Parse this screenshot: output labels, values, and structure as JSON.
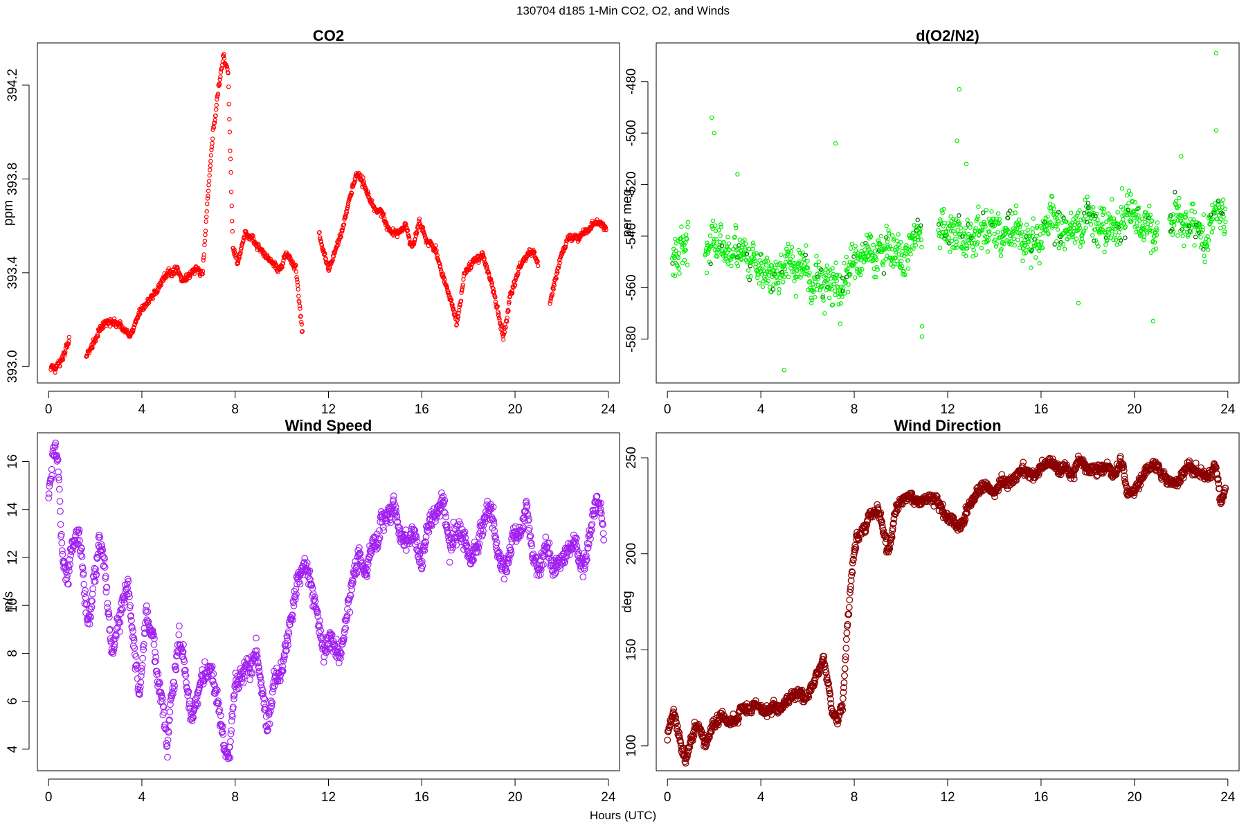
{
  "figure": {
    "title": "130704   d185   1-Min CO2, O2, and Winds",
    "xlabel": "Hours (UTC)"
  },
  "chart_data": [
    {
      "id": "co2",
      "type": "scatter",
      "title": "CO2",
      "xlabel": "",
      "ylabel": "ppm",
      "color": "#ff0000",
      "marker": "open-circle",
      "xlim": [
        -0.48,
        24.48
      ],
      "ylim": [
        392.93,
        394.38
      ],
      "xticks": [
        0,
        4,
        8,
        12,
        16,
        20,
        24
      ],
      "yticks": [
        393.0,
        393.4,
        393.8,
        394.2
      ],
      "ytick_labels": [
        "393.0",
        "393.4",
        "393.8",
        "394.2"
      ],
      "gaps": [
        [
          0.9,
          1.6
        ],
        [
          10.9,
          11.6
        ],
        [
          21.0,
          21.5
        ]
      ],
      "series": [
        {
          "name": "",
          "x": [
            0.1,
            0.5,
            0.9,
            1.6,
            2.0,
            2.5,
            3.0,
            3.5,
            4.0,
            4.5,
            5.0,
            5.5,
            5.8,
            6.3,
            6.6,
            6.8,
            7.0,
            7.3,
            7.5,
            7.7,
            7.9,
            8.1,
            8.4,
            8.7,
            9.0,
            9.3,
            9.6,
            9.9,
            10.2,
            10.6,
            10.9,
            11.6,
            12.0,
            12.5,
            12.8,
            13.2,
            13.5,
            13.9,
            14.3,
            14.8,
            15.3,
            15.6,
            15.9,
            16.2,
            16.6,
            17.0,
            17.5,
            17.8,
            18.2,
            18.6,
            19.0,
            19.5,
            19.8,
            20.1,
            20.4,
            20.8,
            21.5,
            21.9,
            22.3,
            22.8,
            23.2,
            23.5,
            23.9
          ],
          "y": [
            392.99,
            393.02,
            393.1,
            393.03,
            393.13,
            393.2,
            393.18,
            393.14,
            393.24,
            393.3,
            393.38,
            393.41,
            393.37,
            393.43,
            393.4,
            393.7,
            393.95,
            394.2,
            394.33,
            394.25,
            393.5,
            393.45,
            393.55,
            393.55,
            393.5,
            393.46,
            393.44,
            393.4,
            393.48,
            393.42,
            393.12,
            393.55,
            393.42,
            393.55,
            393.68,
            393.82,
            393.78,
            393.68,
            393.65,
            393.55,
            393.6,
            393.5,
            393.62,
            393.55,
            393.5,
            393.35,
            393.18,
            393.38,
            393.46,
            393.48,
            393.35,
            393.12,
            393.3,
            393.4,
            393.45,
            393.5,
            393.28,
            393.46,
            393.55,
            393.55,
            393.58,
            393.62,
            393.6
          ]
        }
      ]
    },
    {
      "id": "o2",
      "type": "scatter",
      "title": "d(O2/N2)",
      "xlabel": "",
      "ylabel": "per meg",
      "color": "#00ee00",
      "marker": "open-circle",
      "xlim": [
        -0.48,
        24.48
      ],
      "ylim": [
        -597,
        -465
      ],
      "xticks": [
        0,
        4,
        8,
        12,
        16,
        20,
        24
      ],
      "yticks": [
        -580,
        -560,
        -540,
        -520,
        -500,
        -480
      ],
      "ytick_labels": [
        "-580",
        "-560",
        "-540",
        "-520",
        "-500",
        "-480"
      ],
      "gaps": [
        [
          0.9,
          1.6
        ],
        [
          10.9,
          11.6
        ],
        [
          21.0,
          21.5
        ]
      ],
      "series": [
        {
          "name": "",
          "x": [
            0.2,
            0.6,
            1.7,
            2.5,
            3.5,
            4.5,
            5.5,
            6.5,
            7.5,
            8.5,
            9.5,
            10.5,
            11.7,
            12.5,
            13.5,
            14.5,
            15.5,
            16.5,
            17.5,
            18.5,
            19.5,
            20.5,
            21.7,
            22.5,
            23.5,
            23.9
          ],
          "y": [
            -545,
            -543,
            -545,
            -546,
            -548,
            -552,
            -553,
            -557,
            -556,
            -550,
            -546,
            -543,
            -539,
            -538,
            -539,
            -540,
            -539,
            -535,
            -537,
            -536,
            -537,
            -538,
            -534,
            -537,
            -533,
            -532
          ],
          "outliers": [
            [
              1.9,
              -494
            ],
            [
              2.0,
              -500
            ],
            [
              3.0,
              -516
            ],
            [
              7.2,
              -504
            ],
            [
              12.5,
              -483
            ],
            [
              12.4,
              -503
            ],
            [
              12.8,
              -512
            ],
            [
              10.9,
              -575
            ],
            [
              10.9,
              -579
            ],
            [
              5.0,
              -592
            ],
            [
              23.5,
              -469
            ],
            [
              23.5,
              -499
            ],
            [
              22.0,
              -509
            ],
            [
              20.8,
              -573
            ],
            [
              17.6,
              -566
            ],
            [
              7.4,
              -574
            ]
          ]
        }
      ]
    },
    {
      "id": "wind-speed",
      "type": "scatter",
      "title": "Wind Speed",
      "xlabel": "",
      "ylabel": "m/s",
      "color": "#a020f0",
      "marker": "open-circle",
      "xlim": [
        -0.48,
        24.48
      ],
      "ylim": [
        3.1,
        17.2
      ],
      "xticks": [
        0,
        4,
        8,
        12,
        16,
        20,
        24
      ],
      "yticks": [
        4,
        6,
        8,
        10,
        12,
        14,
        16
      ],
      "ytick_labels": [
        "4",
        "6",
        "8",
        "10",
        "12",
        "14",
        "16"
      ],
      "series": [
        {
          "name": "",
          "x": [
            0.0,
            0.2,
            0.4,
            0.6,
            0.8,
            1.0,
            1.2,
            1.4,
            1.6,
            1.8,
            2.0,
            2.2,
            2.4,
            2.7,
            3.0,
            3.2,
            3.4,
            3.6,
            3.9,
            4.2,
            4.5,
            4.8,
            5.1,
            5.4,
            5.6,
            5.8,
            6.1,
            6.4,
            6.7,
            7.0,
            7.2,
            7.4,
            7.6,
            7.8,
            8.0,
            8.3,
            8.6,
            8.9,
            9.2,
            9.4,
            9.7,
            10.0,
            10.3,
            10.6,
            10.9,
            11.2,
            11.5,
            11.8,
            12.1,
            12.4,
            12.7,
            13.0,
            13.3,
            13.6,
            13.9,
            14.2,
            14.5,
            14.8,
            15.1,
            15.4,
            15.7,
            16.0,
            16.3,
            16.6,
            16.9,
            17.2,
            17.5,
            17.8,
            18.1,
            18.4,
            18.7,
            19.0,
            19.3,
            19.6,
            19.9,
            20.2,
            20.5,
            20.8,
            21.1,
            21.4,
            21.7,
            22.0,
            22.3,
            22.6,
            22.9,
            23.2,
            23.5,
            23.8
          ],
          "y": [
            14.5,
            16.6,
            15.8,
            11.8,
            10.8,
            12.3,
            13.0,
            12.0,
            10.0,
            9.5,
            11.5,
            13.0,
            12.0,
            8.0,
            9.5,
            10.5,
            11.0,
            9.0,
            6.5,
            9.8,
            8.5,
            6.0,
            4.5,
            7.0,
            9.0,
            8.0,
            5.5,
            6.0,
            6.8,
            7.0,
            6.0,
            5.0,
            3.5,
            4.5,
            7.0,
            7.2,
            7.5,
            8.5,
            6.5,
            5.2,
            7.0,
            7.5,
            9.0,
            11.0,
            11.5,
            11.2,
            9.5,
            8.0,
            8.5,
            7.5,
            8.8,
            11.0,
            12.5,
            11.5,
            12.8,
            13.2,
            13.8,
            14.0,
            13.0,
            12.5,
            13.0,
            12.0,
            13.5,
            13.8,
            14.5,
            12.5,
            13.0,
            12.8,
            11.5,
            12.5,
            13.5,
            14.0,
            12.0,
            11.5,
            13.0,
            12.5,
            14.0,
            12.0,
            11.5,
            12.5,
            11.5,
            12.0,
            12.5,
            12.8,
            12.0,
            13.0,
            14.5,
            12.8
          ]
        }
      ]
    },
    {
      "id": "wind-direction",
      "type": "scatter",
      "title": "Wind Direction",
      "xlabel": "",
      "ylabel": "deg",
      "color": "#8b0000",
      "marker": "open-circle",
      "xlim": [
        -0.48,
        24.48
      ],
      "ylim": [
        87,
        263
      ],
      "xticks": [
        0,
        4,
        8,
        12,
        16,
        20,
        24
      ],
      "yticks": [
        100,
        150,
        200,
        250
      ],
      "ytick_labels": [
        "100",
        "150",
        "200",
        "250"
      ],
      "series": [
        {
          "name": "",
          "x": [
            0.0,
            0.2,
            0.4,
            0.6,
            0.8,
            1.0,
            1.2,
            1.4,
            1.6,
            1.8,
            2.0,
            2.3,
            2.6,
            2.9,
            3.2,
            3.5,
            3.8,
            4.1,
            4.4,
            4.7,
            5.0,
            5.3,
            5.6,
            5.9,
            6.2,
            6.5,
            6.7,
            6.9,
            7.1,
            7.3,
            7.5,
            7.7,
            7.9,
            8.1,
            8.4,
            8.7,
            9.0,
            9.2,
            9.4,
            9.6,
            9.8,
            10.1,
            10.4,
            10.7,
            11.0,
            11.3,
            11.6,
            11.9,
            12.2,
            12.5,
            12.8,
            13.1,
            13.4,
            13.7,
            14.0,
            14.3,
            14.6,
            14.9,
            15.2,
            15.5,
            15.8,
            16.1,
            16.4,
            16.7,
            17.0,
            17.3,
            17.6,
            17.9,
            18.2,
            18.5,
            18.8,
            19.1,
            19.4,
            19.7,
            20.0,
            20.3,
            20.6,
            20.9,
            21.2,
            21.5,
            21.8,
            22.1,
            22.4,
            22.7,
            23.0,
            23.3,
            23.5,
            23.7,
            23.9
          ],
          "y": [
            105,
            116,
            110,
            100,
            95,
            105,
            110,
            108,
            100,
            105,
            112,
            115,
            113,
            112,
            118,
            120,
            122,
            120,
            118,
            120,
            122,
            125,
            128,
            122,
            130,
            140,
            145,
            130,
            115,
            112,
            120,
            160,
            190,
            210,
            215,
            220,
            223,
            215,
            200,
            210,
            225,
            228,
            230,
            225,
            228,
            230,
            226,
            218,
            216,
            214,
            222,
            230,
            232,
            235,
            232,
            238,
            236,
            240,
            245,
            242,
            243,
            245,
            248,
            246,
            245,
            242,
            250,
            245,
            246,
            243,
            245,
            242,
            250,
            230,
            232,
            240,
            244,
            248,
            240,
            236,
            238,
            242,
            246,
            244,
            240,
            242,
            245,
            226,
            232
          ]
        }
      ]
    }
  ]
}
